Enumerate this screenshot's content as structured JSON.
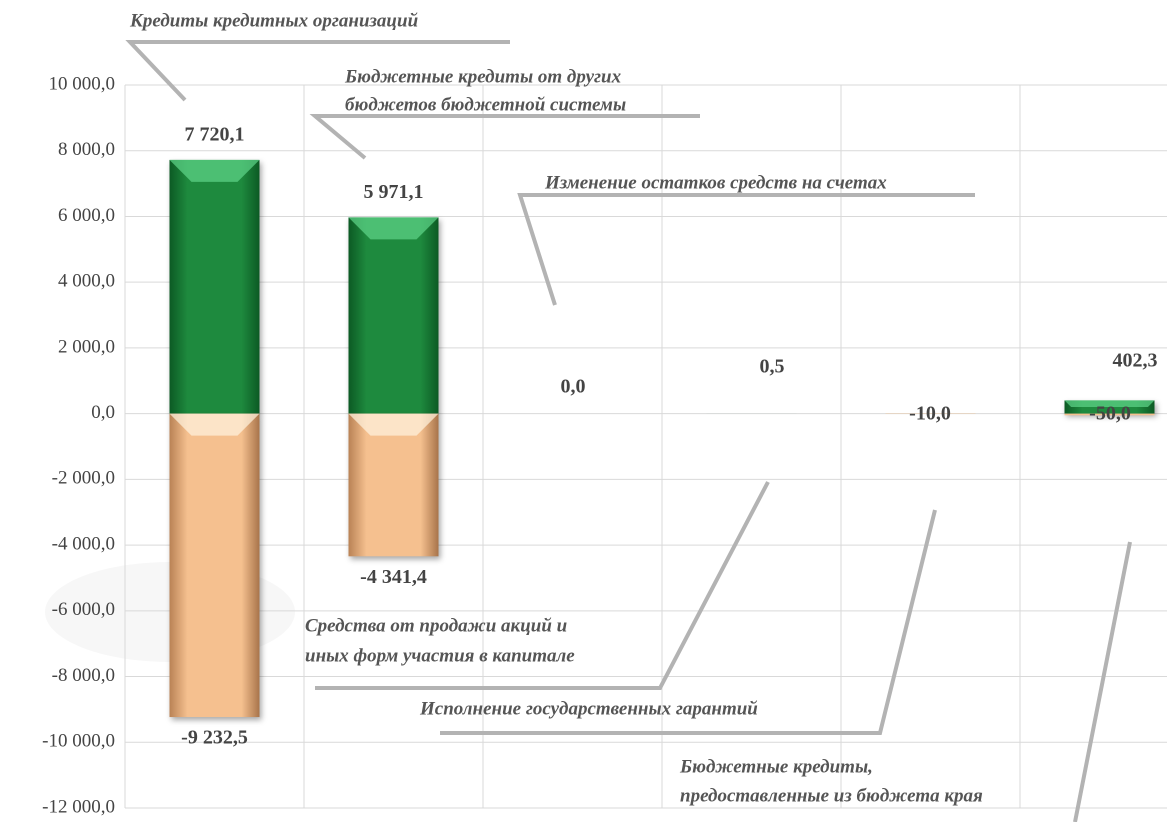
{
  "chart_data": {
    "type": "bar",
    "categories": [
      [
        "Кредиты кредитных организаций"
      ],
      [
        "Бюджетные кредиты от других",
        "бюджетов бюджетной системы"
      ],
      [
        "Изменение остатков средств на счетах"
      ],
      [
        "Средства от продажи акций и",
        "иных форм участия в капитале"
      ],
      [
        "Исполнение государственных гарантий"
      ],
      [
        "Бюджетные кредиты,",
        "предоставленные из бюджета края"
      ]
    ],
    "series": [
      {
        "color": "#1e8a3e",
        "values": [
          7720.1,
          5971.1,
          0.0,
          0.5,
          null,
          402.3
        ],
        "value_labels": [
          "7 720,1",
          "5 971,1",
          "0,0",
          "0,5",
          null,
          "402,3"
        ]
      },
      {
        "color": "#f5c08f",
        "values": [
          -9232.5,
          -4341.4,
          null,
          null,
          -10.0,
          -50.0
        ],
        "value_labels": [
          "-9 232,5",
          "-4 341,4",
          null,
          null,
          "-10,0",
          "-50,0"
        ]
      }
    ],
    "ylim": [
      -12000,
      10000
    ],
    "yticks": [
      {
        "value": -12000,
        "label": "-12 000,0"
      },
      {
        "value": -10000,
        "label": "-10 000,0"
      },
      {
        "value": -8000,
        "label": "-8 000,0"
      },
      {
        "value": -6000,
        "label": "-6 000,0"
      },
      {
        "value": -4000,
        "label": "-4 000,0"
      },
      {
        "value": -2000,
        "label": "-2 000,0"
      },
      {
        "value": 0,
        "label": "0,0"
      },
      {
        "value": 2000,
        "label": "2 000,0"
      },
      {
        "value": 4000,
        "label": "4 000,0"
      },
      {
        "value": 6000,
        "label": "6 000,0"
      },
      {
        "value": 8000,
        "label": "8 000,0"
      },
      {
        "value": 10000,
        "label": "10 000,0"
      }
    ],
    "grid": true
  }
}
